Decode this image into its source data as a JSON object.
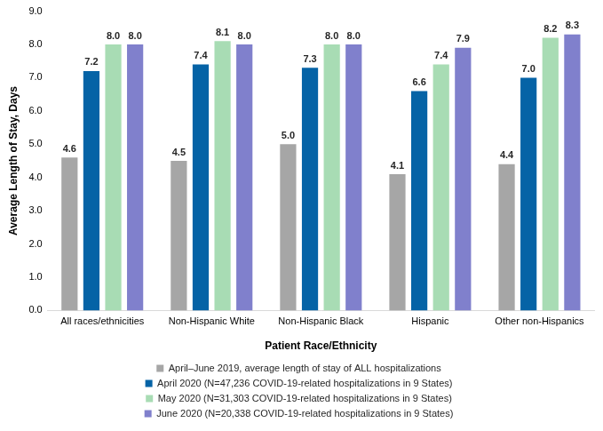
{
  "chart_data": {
    "type": "bar",
    "x_label": "Patient Race/Ethnicity",
    "y_label": "Average Length of Stay, Days",
    "categories": [
      "All races/ethnicities",
      "Non-Hispanic White",
      "Non-Hispanic Black",
      "Hispanic",
      "Other non-Hispanics"
    ],
    "series": [
      {
        "name": "April–June 2019, average length of stay of ALL hospitalizations",
        "color": "#a6a6a6",
        "values": [
          4.6,
          4.5,
          5.0,
          4.1,
          4.4
        ],
        "value_labels": [
          "4.6",
          "4.5",
          "5.0",
          "4.1",
          "4.4"
        ]
      },
      {
        "name": "April 2020 (N=47,236 COVID-19-related hospitalizations in 9 States)",
        "color": "#0563a6",
        "values": [
          7.2,
          7.4,
          7.3,
          6.6,
          7.0
        ],
        "value_labels": [
          "7.2",
          "7.4",
          "7.3",
          "6.6",
          "7.0"
        ]
      },
      {
        "name": "May 2020 (N=31,303 COVID-19-related hospitalizations in 9 States)",
        "color": "#a8dcb4",
        "values": [
          8.0,
          8.1,
          8.0,
          7.4,
          8.2
        ],
        "value_labels": [
          "8.0",
          "8.1",
          "8.0",
          "7.4",
          "8.2"
        ]
      },
      {
        "name": "June 2020 (N=20,338 COVID-19-related hospitalizations in 9 States)",
        "color": "#8080cc",
        "values": [
          8.0,
          8.0,
          8.0,
          7.9,
          8.3
        ],
        "value_labels": [
          "8.0",
          "8.0",
          "8.0",
          "7.9",
          "8.3"
        ]
      }
    ],
    "ylim": [
      0,
      9
    ],
    "yticks": [
      {
        "value": 0,
        "label": "0.0"
      },
      {
        "value": 1,
        "label": "1.0"
      },
      {
        "value": 2,
        "label": "2.0"
      },
      {
        "value": 3,
        "label": "3.0"
      },
      {
        "value": 4,
        "label": "4.0"
      },
      {
        "value": 5,
        "label": "5.0"
      },
      {
        "value": 6,
        "label": "6.0"
      },
      {
        "value": 7,
        "label": "7.0"
      },
      {
        "value": 8,
        "label": "8.0"
      },
      {
        "value": 9,
        "label": "9.0"
      }
    ],
    "grid": false,
    "legend": "bottom",
    "data_labels": true
  }
}
